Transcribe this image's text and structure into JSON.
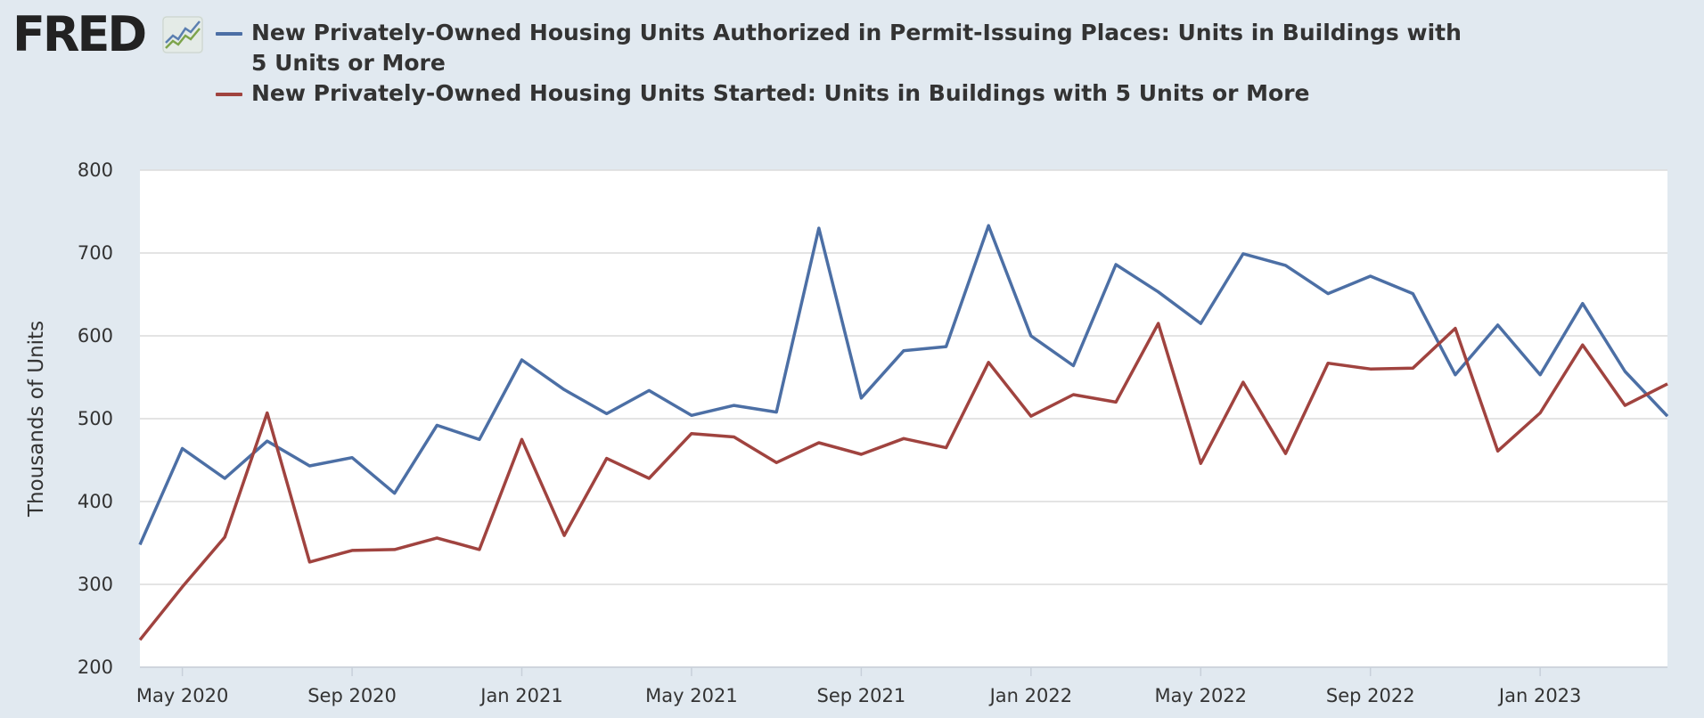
{
  "logo": {
    "text": "FRED",
    "icon": "fred-trend-chart-icon"
  },
  "chart_data": {
    "type": "line",
    "title": "",
    "xlabel": "",
    "ylabel": "Thousands of Units",
    "ylim": [
      200,
      800
    ],
    "y_ticks": [
      200,
      300,
      400,
      500,
      600,
      700,
      800
    ],
    "x_start": "2020-04",
    "x_end": "2023-04",
    "x_tick_labels": [
      {
        "label": "May 2020",
        "date": "2020-05"
      },
      {
        "label": "Sep 2020",
        "date": "2020-09"
      },
      {
        "label": "Jan 2021",
        "date": "2021-01"
      },
      {
        "label": "May 2021",
        "date": "2021-05"
      },
      {
        "label": "Sep 2021",
        "date": "2021-09"
      },
      {
        "label": "Jan 2022",
        "date": "2022-01"
      },
      {
        "label": "May 2022",
        "date": "2022-05"
      },
      {
        "label": "Sep 2022",
        "date": "2022-09"
      },
      {
        "label": "Jan 2023",
        "date": "2023-01"
      }
    ],
    "grid": true,
    "legend_position": "top",
    "x": [
      "2020-04",
      "2020-05",
      "2020-06",
      "2020-07",
      "2020-08",
      "2020-09",
      "2020-10",
      "2020-11",
      "2020-12",
      "2021-01",
      "2021-02",
      "2021-03",
      "2021-04",
      "2021-05",
      "2021-06",
      "2021-07",
      "2021-08",
      "2021-09",
      "2021-10",
      "2021-11",
      "2021-12",
      "2022-01",
      "2022-02",
      "2022-03",
      "2022-04",
      "2022-05",
      "2022-06",
      "2022-07",
      "2022-08",
      "2022-09",
      "2022-10",
      "2022-11",
      "2022-12",
      "2023-01",
      "2023-02",
      "2023-03",
      "2023-04"
    ],
    "series": [
      {
        "name": "New Privately-Owned Housing Units Authorized in Permit-Issuing Places: Units in Buildings with 5 Units or More",
        "color": "#4c6fa5",
        "values": [
          348,
          464,
          428,
          473,
          443,
          453,
          410,
          492,
          475,
          571,
          535,
          506,
          534,
          504,
          516,
          508,
          730,
          525,
          582,
          587,
          733,
          600,
          564,
          686,
          653,
          615,
          699,
          685,
          651,
          672,
          651,
          553,
          613,
          553,
          639,
          557,
          503
        ]
      },
      {
        "name": "New Privately-Owned Housing Units Started: Units in Buildings with 5 Units or More",
        "color": "#a0433f",
        "values": [
          233,
          297,
          357,
          507,
          327,
          341,
          342,
          356,
          342,
          475,
          359,
          452,
          428,
          482,
          478,
          447,
          471,
          457,
          476,
          465,
          568,
          503,
          529,
          520,
          615,
          446,
          544,
          458,
          567,
          560,
          561,
          609,
          461,
          507,
          589,
          516,
          542
        ]
      }
    ]
  }
}
